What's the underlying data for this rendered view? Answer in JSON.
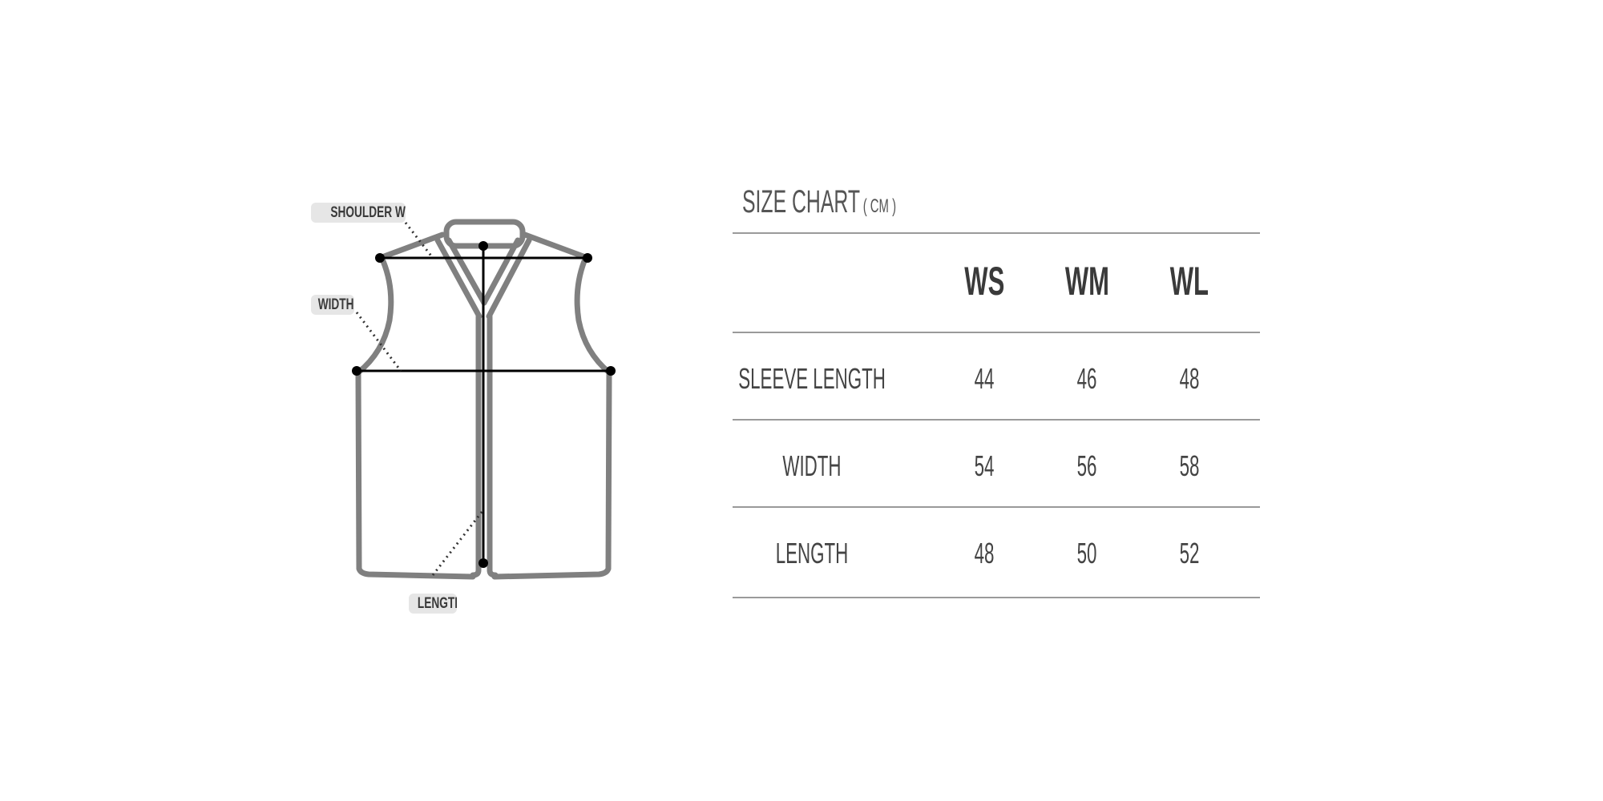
{
  "diagram": {
    "labels": {
      "shoulder_width": "SHOULDER WIDTH",
      "width": "WIDTH",
      "length": "LENGTH"
    },
    "colors": {
      "outline": "#808080",
      "measure": "#000000",
      "tag_bg": "#e6e6e6"
    }
  },
  "size_chart": {
    "title": "SIZE CHART",
    "unit": "( CM )",
    "columns": [
      "WS",
      "WM",
      "WL"
    ],
    "rows": [
      {
        "label": "SLEEVE LENGTH",
        "values": [
          "44",
          "46",
          "48"
        ]
      },
      {
        "label": "WIDTH",
        "values": [
          "54",
          "56",
          "58"
        ]
      },
      {
        "label": "LENGTH",
        "values": [
          "48",
          "50",
          "52"
        ]
      }
    ]
  }
}
